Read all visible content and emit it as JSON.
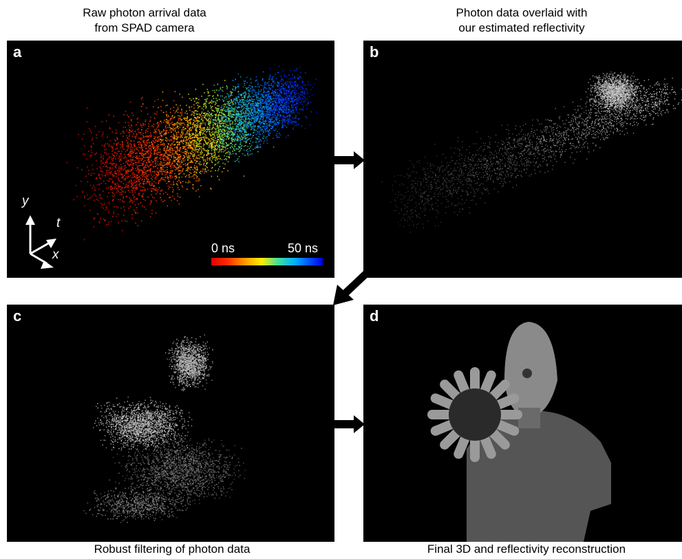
{
  "captions": {
    "a_line1": "Raw photon arrival data",
    "a_line2": "from SPAD camera",
    "b_line1": "Photon data overlaid with",
    "b_line2": "our estimated reflectivity",
    "c": "Robust filtering of photon data",
    "d": "Final 3D and reflectivity reconstruction"
  },
  "panels": {
    "a": {
      "letter": "a"
    },
    "b": {
      "letter": "b"
    },
    "c": {
      "letter": "c"
    },
    "d": {
      "letter": "d"
    }
  },
  "colorbar": {
    "min_label": "0 ns",
    "max_label": "50 ns"
  },
  "axes": {
    "y": "y",
    "t": "t",
    "x": "x"
  },
  "colors": {
    "panel_bg": "#000000",
    "arrow": "#000000",
    "text_on_dark": "#ffffff"
  }
}
